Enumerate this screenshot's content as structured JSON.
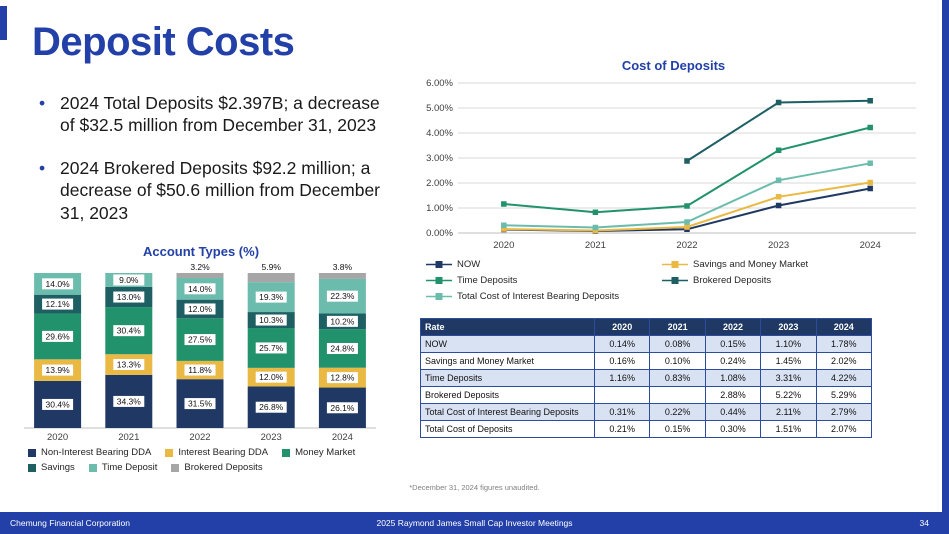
{
  "slide": {
    "title": "Deposit Costs",
    "bullets": [
      "2024 Total Deposits $2.397B; a decrease of $32.5 million from December 31, 2023",
      "2024 Brokered Deposits $92.2 million; a decrease of $50.6 million from December 31, 2023"
    ],
    "footnote": "*December 31, 2024 figures unaudited.",
    "footer": {
      "left": "Chemung Financial Corporation",
      "center": "2025 Raymond James Small Cap Investor Meetings",
      "page": "34"
    }
  },
  "colors": {
    "brand_blue": "#2240A8",
    "table_header_bg": "#1F3864",
    "table_border": "#2E4C9E",
    "table_row_alt": "#D9E2F3",
    "grid_line": "#D9D9D9",
    "axis_line": "#BFBFBF",
    "axis_text": "#404040",
    "footnote_gray": "#808080"
  },
  "chart_data": [
    {
      "type": "line",
      "title": "Cost of Deposits",
      "x": [
        "2020",
        "2021",
        "2022",
        "2023",
        "2024"
      ],
      "ylim": [
        0,
        6
      ],
      "yticks": [
        "0.00%",
        "1.00%",
        "2.00%",
        "3.00%",
        "4.00%",
        "5.00%",
        "6.00%"
      ],
      "grid": true,
      "legend_position": "bottom",
      "series": [
        {
          "name": "NOW",
          "color": "#1F3864",
          "values": [
            0.14,
            0.08,
            0.15,
            1.1,
            1.78
          ]
        },
        {
          "name": "Savings and Money Market",
          "color": "#E9B944",
          "values": [
            0.16,
            0.1,
            0.24,
            1.45,
            2.02
          ]
        },
        {
          "name": "Time Deposits",
          "color": "#21926B",
          "values": [
            1.16,
            0.83,
            1.08,
            3.31,
            4.22
          ]
        },
        {
          "name": "Brokered Deposits",
          "color": "#1D5F63",
          "values": [
            null,
            null,
            2.88,
            5.22,
            5.29
          ]
        },
        {
          "name": "Total Cost of Interest Bearing Deposits",
          "color": "#6CBCAD",
          "values": [
            0.31,
            0.22,
            0.44,
            2.11,
            2.79
          ]
        }
      ]
    },
    {
      "type": "stacked-bar",
      "title": "Account Types (%)",
      "categories": [
        "2020",
        "2021",
        "2022",
        "2023",
        "2024"
      ],
      "ylim": [
        0,
        100
      ],
      "legend_position": "bottom",
      "series": [
        {
          "name": "Non-Interest Bearing DDA",
          "color": "#1F3864",
          "values": [
            30.4,
            34.3,
            31.5,
            26.8,
            26.1
          ]
        },
        {
          "name": "Interest Bearing DDA",
          "color": "#E9B944",
          "values": [
            13.9,
            13.3,
            11.8,
            12.0,
            12.8
          ]
        },
        {
          "name": "Money Market",
          "color": "#21926B",
          "values": [
            29.6,
            30.4,
            27.5,
            25.7,
            24.8
          ]
        },
        {
          "name": "Savings",
          "color": "#1D5F63",
          "values": [
            12.1,
            13.0,
            12.0,
            10.3,
            10.2
          ]
        },
        {
          "name": "Time Deposit",
          "color": "#6CBCAD",
          "values": [
            14.0,
            9.0,
            14.0,
            19.3,
            22.3
          ]
        },
        {
          "name": "Brokered Deposits",
          "color": "#A6A6A6",
          "values": [
            0,
            0,
            3.2,
            5.9,
            3.8
          ]
        }
      ]
    }
  ],
  "table": {
    "headers": [
      "Rate",
      "2020",
      "2021",
      "2022",
      "2023",
      "2024"
    ],
    "rows": [
      [
        "NOW",
        "0.14%",
        "0.08%",
        "0.15%",
        "1.10%",
        "1.78%"
      ],
      [
        "Savings and Money Market",
        "0.16%",
        "0.10%",
        "0.24%",
        "1.45%",
        "2.02%"
      ],
      [
        "Time Deposits",
        "1.16%",
        "0.83%",
        "1.08%",
        "3.31%",
        "4.22%"
      ],
      [
        "Brokered Deposits",
        "",
        "",
        "2.88%",
        "5.22%",
        "5.29%"
      ],
      [
        "Total Cost of Interest Bearing Deposits",
        "0.31%",
        "0.22%",
        "0.44%",
        "2.11%",
        "2.79%"
      ],
      [
        "Total Cost of Deposits",
        "0.21%",
        "0.15%",
        "0.30%",
        "1.51%",
        "2.07%"
      ]
    ]
  }
}
